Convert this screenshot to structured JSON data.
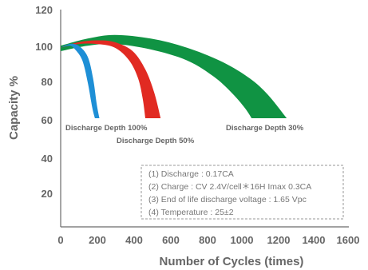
{
  "chart_data": {
    "type": "area",
    "xlabel": "Number of Cycles (times)",
    "ylabel": "Capacity %",
    "xlim": [
      0,
      1600
    ],
    "ylim": [
      0,
      120
    ],
    "x_ticks": [
      "0",
      "200",
      "400",
      "600",
      "800",
      "1000",
      "1200",
      "1400",
      "1600"
    ],
    "y_ticks": [
      "20",
      "40",
      "60",
      "80",
      "100",
      "120"
    ],
    "grid": false,
    "series": [
      {
        "name": "Discharge Depth 100%",
        "color": "#1e8fd6",
        "upper": [
          [
            0,
            99
          ],
          [
            50,
            101
          ],
          [
            100,
            100
          ],
          [
            150,
            94
          ],
          [
            180,
            82
          ],
          [
            200,
            68
          ],
          [
            215,
            60
          ]
        ],
        "lower": [
          [
            0,
            99
          ],
          [
            50,
            100
          ],
          [
            80,
            98
          ],
          [
            120,
            92
          ],
          [
            150,
            80
          ],
          [
            175,
            66
          ],
          [
            190,
            60
          ]
        ]
      },
      {
        "name": "Discharge Depth 50%",
        "color": "#e12a22",
        "upper": [
          [
            0,
            99
          ],
          [
            100,
            102
          ],
          [
            200,
            103
          ],
          [
            300,
            102
          ],
          [
            400,
            97
          ],
          [
            470,
            87
          ],
          [
            520,
            74
          ],
          [
            555,
            60
          ]
        ],
        "lower": [
          [
            0,
            99
          ],
          [
            100,
            101
          ],
          [
            200,
            101
          ],
          [
            300,
            99
          ],
          [
            380,
            92
          ],
          [
            430,
            82
          ],
          [
            455,
            71
          ],
          [
            470,
            60
          ]
        ]
      },
      {
        "name": "Discharge Depth 30%",
        "color": "#109343",
        "upper": [
          [
            0,
            100
          ],
          [
            150,
            104
          ],
          [
            300,
            106
          ],
          [
            500,
            104
          ],
          [
            700,
            99
          ],
          [
            900,
            91
          ],
          [
            1050,
            82
          ],
          [
            1150,
            73
          ],
          [
            1255,
            60
          ]
        ],
        "lower": [
          [
            0,
            97
          ],
          [
            150,
            100
          ],
          [
            300,
            101
          ],
          [
            500,
            98
          ],
          [
            700,
            92
          ],
          [
            850,
            83
          ],
          [
            950,
            74
          ],
          [
            1020,
            66
          ],
          [
            1060,
            60
          ]
        ]
      }
    ],
    "annotations": [
      {
        "text": "Discharge Depth 100%"
      },
      {
        "text": "Discharge Depth 50%"
      },
      {
        "text": "Discharge Depth 30%"
      }
    ],
    "notes": [
      "(1) Discharge : 0.17CA",
      "(2) Charge : CV 2.4V/cell＊16H Imax 0.3CA",
      "(3) End of life discharge voltage : 1.65 Vpc",
      "(4) Temperature : 25±2"
    ]
  }
}
